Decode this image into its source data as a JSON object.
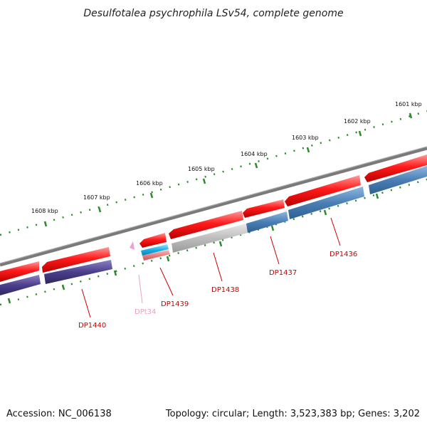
{
  "title": "Desulfotalea psychrophila LSv54, complete genome",
  "footer": {
    "accession": "Accession: NC_006138",
    "summary": "Topology: circular; Length: 3,523,383 bp; Genes: 3,202"
  },
  "colors": {
    "backbone": "#7a7a7a",
    "tick": "#2d8a2d",
    "tick_label": "#111111",
    "gene_label": "#cc0000",
    "trna_label": "#e8a0c8",
    "forward_cds": "#f00000",
    "reverse_blue": "#4a7fb5",
    "reverse_purple": "#4b3f8c",
    "gray_feature": "#bdbdbd",
    "cyan_feature": "#1ab0e8",
    "salmon_feature": "#e88080",
    "trna_feature": "#f0a0d0"
  },
  "ticks": [
    {
      "label": "1601 kbp"
    },
    {
      "label": "1602 kbp"
    },
    {
      "label": "1603 kbp"
    },
    {
      "label": "1604 kbp"
    },
    {
      "label": "1605 kbp"
    },
    {
      "label": "1606 kbp"
    },
    {
      "label": "1607 kbp"
    },
    {
      "label": "1608 kbp"
    }
  ],
  "genes": [
    {
      "label": "DP1436"
    },
    {
      "label": "DP1437"
    },
    {
      "label": "DP1438"
    },
    {
      "label": "DP1439"
    },
    {
      "label": "DPt34"
    },
    {
      "label": "DP1440"
    }
  ]
}
